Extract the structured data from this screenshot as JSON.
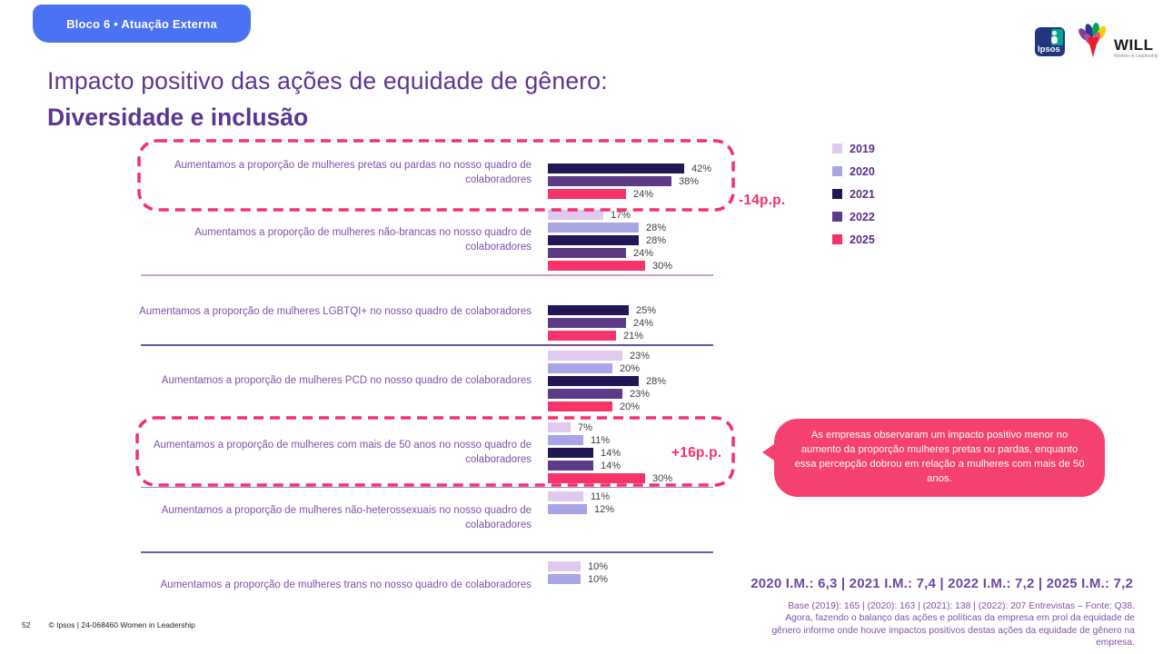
{
  "badge": {
    "label": "Bloco 6 • Atuação Externa"
  },
  "title": {
    "line1": "Impacto positivo das ações de equidade de gênero:",
    "line2": "Diversidade e inclusão"
  },
  "logos": {
    "ipsos": "Ipsos",
    "will": "WILL",
    "will_subtitle": "Women in Leadership"
  },
  "chart_data": {
    "type": "bar",
    "orientation": "horizontal",
    "unit": "%",
    "xlim": [
      0,
      45
    ],
    "legend_position": "right",
    "years": [
      "2019",
      "2020",
      "2021",
      "2022",
      "2025"
    ],
    "colors": {
      "2019": "#DFC9EE",
      "2020": "#A9A5E4",
      "2021": "#221655",
      "2022": "#5C3A86",
      "2025": "#F5356A"
    },
    "groups": [
      {
        "label": "Aumentamos a proporção de mulheres pretas ou pardas no nosso quadro de colaboradores",
        "highlighted": true,
        "annotation": "-14p.p.",
        "bars": [
          {
            "year": "2021",
            "value": 42
          },
          {
            "year": "2022",
            "value": 38
          },
          {
            "year": "2025",
            "value": 24
          }
        ]
      },
      {
        "label": "Aumentamos a proporção de mulheres não-brancas no nosso quadro de colaboradores",
        "highlighted": false,
        "annotation": "",
        "bars": [
          {
            "year": "2019",
            "value": 17
          },
          {
            "year": "2020",
            "value": 28
          },
          {
            "year": "2021",
            "value": 28
          },
          {
            "year": "2022",
            "value": 24
          },
          {
            "year": "2025",
            "value": 30
          }
        ]
      },
      {
        "label": "Aumentamos a proporção de mulheres LGBTQI+ no nosso quadro de colaboradores",
        "highlighted": false,
        "annotation": "",
        "bars": [
          {
            "year": "2021",
            "value": 25
          },
          {
            "year": "2022",
            "value": 24
          },
          {
            "year": "2025",
            "value": 21
          }
        ]
      },
      {
        "label": "Aumentamos a proporção de mulheres PCD no nosso quadro de colaboradores",
        "highlighted": false,
        "annotation": "",
        "bars": [
          {
            "year": "2019",
            "value": 23
          },
          {
            "year": "2020",
            "value": 20
          },
          {
            "year": "2021",
            "value": 28
          },
          {
            "year": "2022",
            "value": 23
          },
          {
            "year": "2025",
            "value": 20
          }
        ]
      },
      {
        "label": "Aumentamos a proporção de mulheres com mais de 50 anos no nosso quadro de colaboradores",
        "highlighted": true,
        "annotation": "+16p.p.",
        "bars": [
          {
            "year": "2019",
            "value": 7
          },
          {
            "year": "2020",
            "value": 11
          },
          {
            "year": "2021",
            "value": 14
          },
          {
            "year": "2022",
            "value": 14
          },
          {
            "year": "2025",
            "value": 30
          }
        ]
      },
      {
        "label": "Aumentamos a proporção de mulheres não-heterossexuais no nosso quadro de colaboradores",
        "highlighted": false,
        "annotation": "",
        "bars": [
          {
            "year": "2019",
            "value": 11
          },
          {
            "year": "2020",
            "value": 12
          }
        ]
      },
      {
        "label": "Aumentamos a proporção de mulheres trans no nosso quadro de colaboradores",
        "highlighted": false,
        "annotation": "",
        "bars": [
          {
            "year": "2019",
            "value": 10
          },
          {
            "year": "2020",
            "value": 10
          }
        ]
      }
    ]
  },
  "callout": {
    "text": "As empresas observaram um impacto positivo menor no aumento da proporção mulheres pretas ou pardas, enquanto essa percepção dobrou em relação a mulheres com mais de 50 anos.",
    "color": "#F4416F"
  },
  "im_line": "2020 I.M.: 6,3 | 2021 I.M.: 7,4 | 2022 I.M.: 7,2 | 2025 I.M.: 7,2",
  "source": "Base (2019): 165 | (2020): 163  | (2021): 138 | (2022): 207 Entrevistas – Fonte: Q38.  Agora, fazendo o balanço das ações e políticas da empresa em prol da equidade de gênero informe onde houve impactos positivos destas ações da equidade de gênero na empresa.",
  "footer": {
    "page": "52",
    "copyright": "© Ipsos | 24-068460 Women in Leadership"
  },
  "accent_colors": {
    "badge_blue": "#4A72F2",
    "title_purple": "#5C3590",
    "highlight_pink": "#F5316B"
  }
}
